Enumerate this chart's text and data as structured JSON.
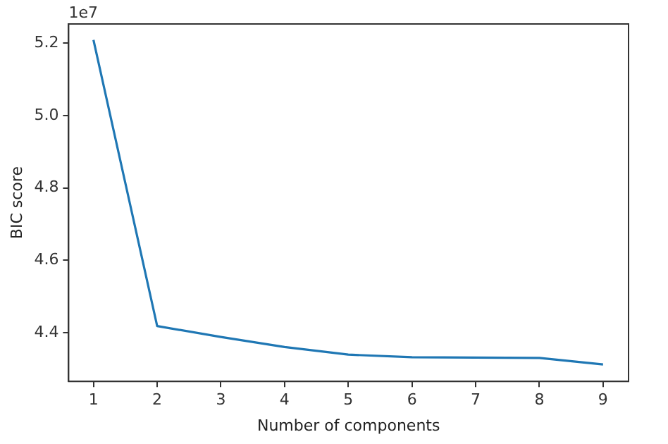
{
  "chart_data": {
    "type": "line",
    "xlabel": "Number of components",
    "ylabel": "BIC score",
    "annotations": [
      "1e7"
    ],
    "x": [
      1,
      2,
      3,
      4,
      5,
      6,
      7,
      8,
      9
    ],
    "series": [
      {
        "color": "#1f77b4",
        "values": [
          5.209,
          4.418,
          4.388,
          4.36,
          4.339,
          4.332,
          4.331,
          4.33,
          4.312
        ]
      }
    ],
    "xlim": [
      0.61,
      9.4
    ],
    "xticks": [
      1,
      2,
      3,
      4,
      5,
      6,
      7,
      8,
      9
    ],
    "ylim": [
      4.265,
      5.253
    ],
    "yticks": [
      {
        "value": 4.4,
        "label": "4.4"
      },
      {
        "value": 4.6,
        "label": "4.6"
      },
      {
        "value": 4.8,
        "label": "4.8"
      },
      {
        "value": 5.0,
        "label": "5.0"
      },
      {
        "value": 5.2,
        "label": "5.2"
      }
    ],
    "grid": false,
    "legend": false,
    "marker": "none",
    "line_style": "solid"
  }
}
